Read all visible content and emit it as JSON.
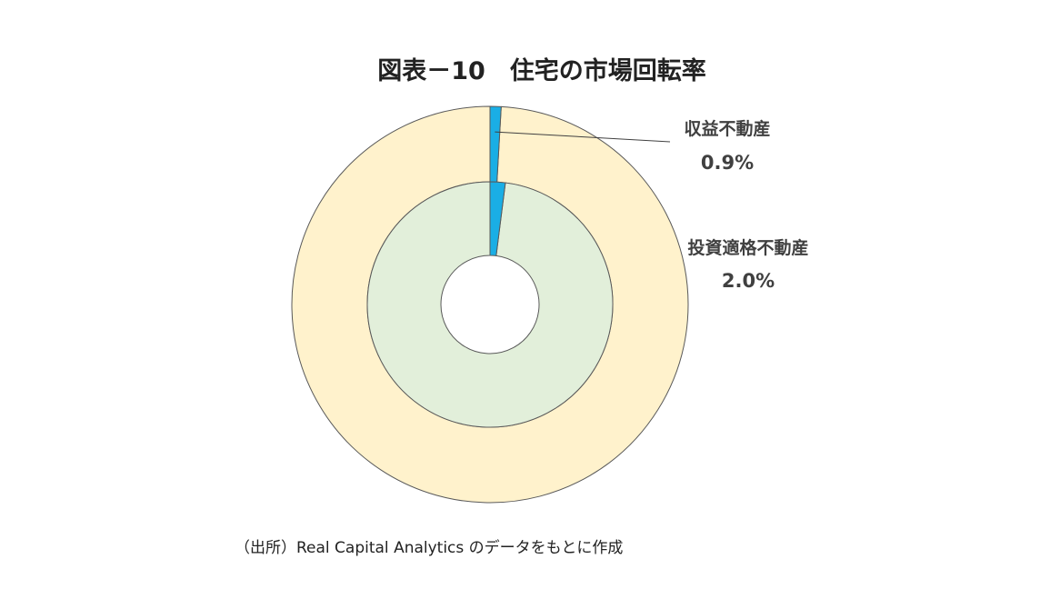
{
  "chart_data": {
    "type": "pie",
    "title": "図表－10　住宅の市場回転率",
    "source": "（出所）Real Capital Analytics のデータをもとに作成",
    "rings": [
      {
        "name": "収益不動産",
        "value_label": "0.9%",
        "value": 0.9,
        "colors": {
          "highlight": "#1aaee5",
          "rest": "#fff2cc"
        }
      },
      {
        "name": "投資適格不動産",
        "value_label": "2.0%",
        "value": 2.0,
        "colors": {
          "highlight": "#1aaee5",
          "rest": "#e2efda"
        }
      }
    ],
    "colors": {
      "stroke": "#595959",
      "leader": "#404040"
    }
  }
}
